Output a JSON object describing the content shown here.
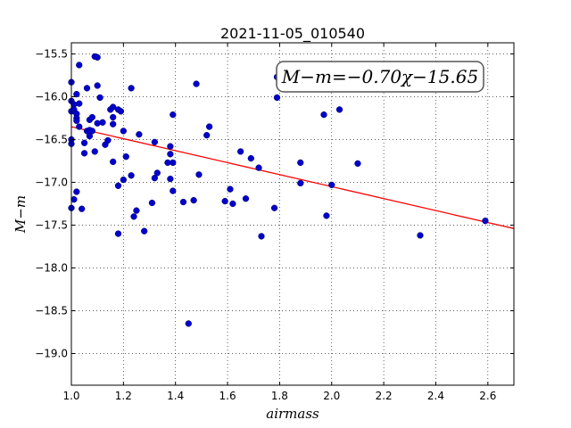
{
  "chart_data": {
    "type": "scatter",
    "title": "2021-11-05_010540",
    "xlabel": "airmass",
    "ylabel": "M−m",
    "xlim": [
      1.0,
      2.7
    ],
    "ylim": [
      -19.37,
      -15.37
    ],
    "y_inverted": true,
    "grid": true,
    "xticks": [
      "1.0",
      "1.2",
      "1.4",
      "1.6",
      "1.8",
      "2.0",
      "2.2",
      "2.4",
      "2.6"
    ],
    "yticks": [
      "−15.5",
      "−16.0",
      "−16.5",
      "−17.0",
      "−17.5",
      "−18.0",
      "−18.5",
      "−19.0"
    ],
    "annotation": "M−m=−0.70χ−15.65",
    "point_color": "#0000cc",
    "fit_color": "#ff0000",
    "fit_line": {
      "slope": -0.7,
      "intercept": -15.65
    },
    "points": [
      {
        "x": 1.0,
        "y": -15.83
      },
      {
        "x": 1.0,
        "y": -16.05
      },
      {
        "x": 1.0,
        "y": -16.17
      },
      {
        "x": 1.0,
        "y": -16.5
      },
      {
        "x": 1.0,
        "y": -16.55
      },
      {
        "x": 1.0,
        "y": -17.3
      },
      {
        "x": 1.01,
        "y": -16.09
      },
      {
        "x": 1.01,
        "y": -16.15
      },
      {
        "x": 1.01,
        "y": -17.2
      },
      {
        "x": 1.02,
        "y": -15.97
      },
      {
        "x": 1.02,
        "y": -16.2
      },
      {
        "x": 1.02,
        "y": -16.25
      },
      {
        "x": 1.02,
        "y": -16.28
      },
      {
        "x": 1.02,
        "y": -17.11
      },
      {
        "x": 1.03,
        "y": -15.63
      },
      {
        "x": 1.03,
        "y": -16.08
      },
      {
        "x": 1.03,
        "y": -16.35
      },
      {
        "x": 1.04,
        "y": -17.31
      },
      {
        "x": 1.05,
        "y": -16.66
      },
      {
        "x": 1.05,
        "y": -16.54
      },
      {
        "x": 1.06,
        "y": -16.4
      },
      {
        "x": 1.06,
        "y": -15.9
      },
      {
        "x": 1.07,
        "y": -16.27
      },
      {
        "x": 1.07,
        "y": -16.39
      },
      {
        "x": 1.07,
        "y": -16.46
      },
      {
        "x": 1.08,
        "y": -16.24
      },
      {
        "x": 1.08,
        "y": -16.4
      },
      {
        "x": 1.09,
        "y": -15.53
      },
      {
        "x": 1.09,
        "y": -16.64
      },
      {
        "x": 1.1,
        "y": -15.54
      },
      {
        "x": 1.1,
        "y": -15.87
      },
      {
        "x": 1.1,
        "y": -16.31
      },
      {
        "x": 1.11,
        "y": -16.01
      },
      {
        "x": 1.12,
        "y": -16.3
      },
      {
        "x": 1.13,
        "y": -16.56
      },
      {
        "x": 1.14,
        "y": -16.51
      },
      {
        "x": 1.15,
        "y": -16.15
      },
      {
        "x": 1.16,
        "y": -16.12
      },
      {
        "x": 1.16,
        "y": -16.24
      },
      {
        "x": 1.16,
        "y": -16.32
      },
      {
        "x": 1.16,
        "y": -16.76
      },
      {
        "x": 1.18,
        "y": -16.15
      },
      {
        "x": 1.18,
        "y": -17.04
      },
      {
        "x": 1.18,
        "y": -17.6
      },
      {
        "x": 1.19,
        "y": -16.17
      },
      {
        "x": 1.2,
        "y": -16.4
      },
      {
        "x": 1.2,
        "y": -16.97
      },
      {
        "x": 1.21,
        "y": -16.7
      },
      {
        "x": 1.23,
        "y": -15.9
      },
      {
        "x": 1.23,
        "y": -16.92
      },
      {
        "x": 1.24,
        "y": -17.4
      },
      {
        "x": 1.25,
        "y": -17.33
      },
      {
        "x": 1.26,
        "y": -16.44
      },
      {
        "x": 1.28,
        "y": -17.57
      },
      {
        "x": 1.31,
        "y": -17.24
      },
      {
        "x": 1.32,
        "y": -16.53
      },
      {
        "x": 1.32,
        "y": -16.95
      },
      {
        "x": 1.33,
        "y": -16.89
      },
      {
        "x": 1.37,
        "y": -16.77
      },
      {
        "x": 1.38,
        "y": -16.58
      },
      {
        "x": 1.38,
        "y": -16.67
      },
      {
        "x": 1.38,
        "y": -16.96
      },
      {
        "x": 1.39,
        "y": -16.21
      },
      {
        "x": 1.39,
        "y": -16.77
      },
      {
        "x": 1.39,
        "y": -17.1
      },
      {
        "x": 1.43,
        "y": -17.23
      },
      {
        "x": 1.45,
        "y": -18.65
      },
      {
        "x": 1.47,
        "y": -17.21
      },
      {
        "x": 1.48,
        "y": -15.85
      },
      {
        "x": 1.49,
        "y": -16.91
      },
      {
        "x": 1.52,
        "y": -16.45
      },
      {
        "x": 1.53,
        "y": -16.35
      },
      {
        "x": 1.59,
        "y": -17.22
      },
      {
        "x": 1.61,
        "y": -17.08
      },
      {
        "x": 1.62,
        "y": -17.25
      },
      {
        "x": 1.65,
        "y": -16.64
      },
      {
        "x": 1.67,
        "y": -17.19
      },
      {
        "x": 1.69,
        "y": -16.72
      },
      {
        "x": 1.72,
        "y": -16.83
      },
      {
        "x": 1.73,
        "y": -17.63
      },
      {
        "x": 1.78,
        "y": -17.3
      },
      {
        "x": 1.79,
        "y": -15.77
      },
      {
        "x": 1.79,
        "y": -16.01
      },
      {
        "x": 1.88,
        "y": -16.77
      },
      {
        "x": 1.88,
        "y": -17.01
      },
      {
        "x": 1.97,
        "y": -16.21
      },
      {
        "x": 1.98,
        "y": -17.39
      },
      {
        "x": 2.0,
        "y": -17.03
      },
      {
        "x": 2.03,
        "y": -16.15
      },
      {
        "x": 2.1,
        "y": -16.78
      },
      {
        "x": 2.34,
        "y": -17.62
      },
      {
        "x": 2.59,
        "y": -17.45
      }
    ]
  }
}
